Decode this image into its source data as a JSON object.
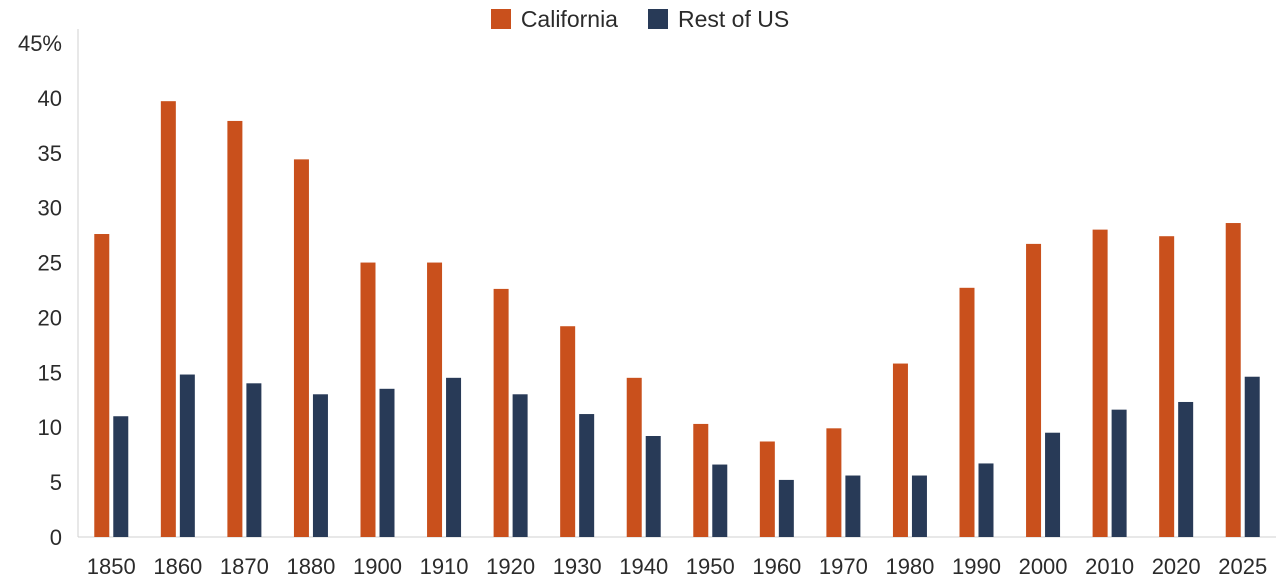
{
  "chart_data": {
    "type": "bar",
    "categories": [
      "1850",
      "1860",
      "1870",
      "1880",
      "1900",
      "1910",
      "1920",
      "1930",
      "1940",
      "1950",
      "1960",
      "1970",
      "1980",
      "1990",
      "2000",
      "2010",
      "2020",
      "2025"
    ],
    "series": [
      {
        "name": "California",
        "color": "#c9501c",
        "values": [
          27.6,
          39.7,
          37.9,
          34.4,
          25.0,
          25.0,
          22.6,
          19.2,
          14.5,
          10.3,
          8.7,
          9.9,
          15.8,
          22.7,
          26.7,
          28.0,
          27.4,
          28.6
        ]
      },
      {
        "name": "Rest of US",
        "color": "#283a57",
        "values": [
          11.0,
          14.8,
          14.0,
          13.0,
          13.5,
          14.5,
          13.0,
          11.2,
          9.2,
          6.6,
          5.2,
          5.6,
          5.6,
          6.7,
          9.5,
          11.6,
          12.3,
          14.6
        ]
      }
    ],
    "yticks": [
      "0",
      "5",
      "10",
      "15",
      "20",
      "25",
      "30",
      "35",
      "40",
      "45%"
    ],
    "ylim": [
      0,
      45
    ],
    "grid": false,
    "legend_position": "top-center"
  }
}
